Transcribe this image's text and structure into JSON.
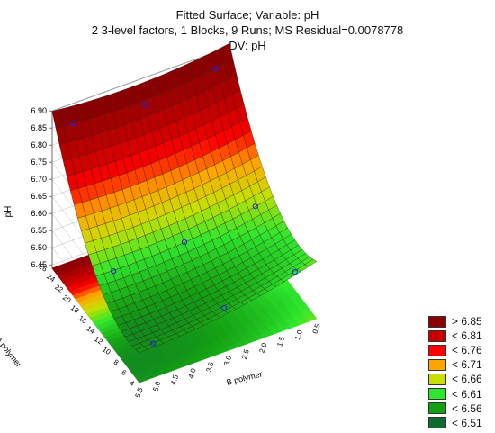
{
  "chart_data": {
    "type": "surface3d",
    "title": "Fitted Surface; Variable: pH",
    "subtitle": "2 3-level factors, 1 Blocks, 9 Runs; MS Residual=0.0078778",
    "dv_label": "DV: pH",
    "xlabel": "A polymer",
    "ylabel": "B polymer",
    "zlabel": "pH",
    "xlim": [
      4,
      26
    ],
    "ylim": [
      0.5,
      5.5
    ],
    "zlim": [
      6.44,
      6.9
    ],
    "x_ticks": [
      "4",
      "6",
      "8",
      "10",
      "12",
      "14",
      "16",
      "18",
      "20",
      "22",
      "24",
      "26"
    ],
    "y_ticks": [
      "5.5",
      "5.0",
      "4.5",
      "4.0",
      "3.5",
      "3.0",
      "2.5",
      "2.0",
      "1.5",
      "1.0",
      "0.5"
    ],
    "z_ticks": [
      "6.45",
      "6.50",
      "6.55",
      "6.60",
      "6.65",
      "6.70",
      "6.75",
      "6.80",
      "6.85",
      "6.90"
    ],
    "observed_points": [
      {
        "a": 25,
        "b": 5.0,
        "ph": 6.86
      },
      {
        "a": 25,
        "b": 3.0,
        "ph": 6.84
      },
      {
        "a": 25,
        "b": 1.0,
        "ph": 6.87
      },
      {
        "a": 15,
        "b": 5.0,
        "ph": 6.58
      },
      {
        "a": 15,
        "b": 3.0,
        "ph": 6.59
      },
      {
        "a": 15,
        "b": 1.0,
        "ph": 6.62
      },
      {
        "a": 5,
        "b": 5.0,
        "ph": 6.52
      },
      {
        "a": 5,
        "b": 3.0,
        "ph": 6.55
      },
      {
        "a": 5,
        "b": 1.0,
        "ph": 6.58
      }
    ],
    "legend": {
      "entries": [
        {
          "label": "> 6.85",
          "color": "#8b0000"
        },
        {
          "label": "< 6.81",
          "color": "#c80000"
        },
        {
          "label": "< 6.76",
          "color": "#ff0000"
        },
        {
          "label": "< 6.71",
          "color": "#ffa500"
        },
        {
          "label": "< 6.66",
          "color": "#c7e000"
        },
        {
          "label": "< 6.61",
          "color": "#2ee62e"
        },
        {
          "label": "< 6.56",
          "color": "#14a014"
        },
        {
          "label": "< 6.51",
          "color": "#0d6b2e"
        }
      ],
      "placement": "bottom-right"
    },
    "colors": {
      "surface_low": "#0d6b2e",
      "surface_high": "#cc0000",
      "point": "#2020e0"
    }
  }
}
